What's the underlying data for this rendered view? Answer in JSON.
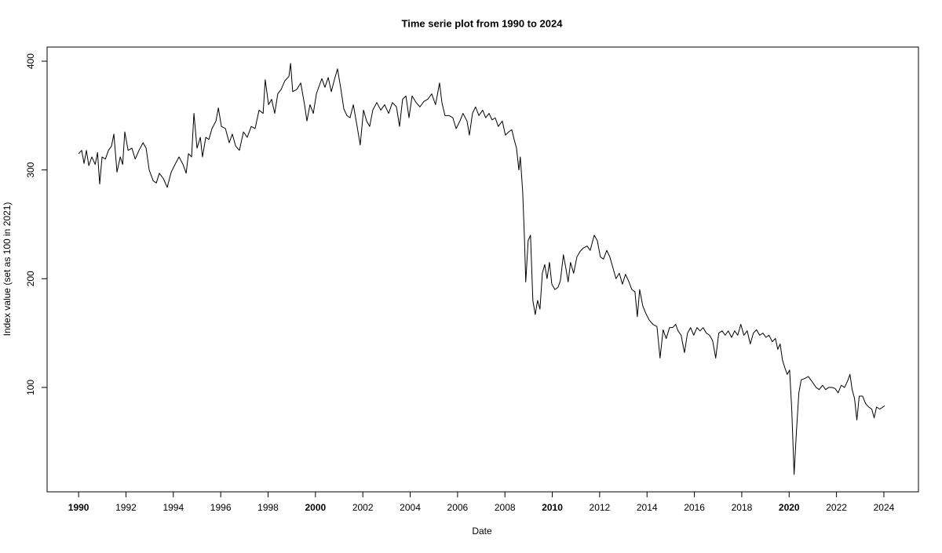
{
  "chart_data": {
    "type": "line",
    "title": "Time serie plot from 1990 to 2024",
    "x_label": "Date",
    "y_label": "Index value (set as 100 in 2021)",
    "color": "#000000",
    "xlim": [
      1988.67,
      2025.46
    ],
    "ylim": [
      4,
      413
    ],
    "xticks": [
      1990,
      1992,
      1994,
      1996,
      1998,
      2000,
      2002,
      2004,
      2006,
      2008,
      2010,
      2012,
      2014,
      2016,
      2018,
      2020,
      2022,
      2024
    ],
    "yticks": [
      100,
      200,
      300,
      400
    ],
    "x": [
      1990.0,
      1990.13,
      1990.23,
      1990.33,
      1990.43,
      1990.56,
      1990.7,
      1990.8,
      1990.89,
      1990.99,
      1991.13,
      1991.26,
      1991.39,
      1991.49,
      1991.62,
      1991.76,
      1991.86,
      1991.95,
      1992.09,
      1992.25,
      1992.39,
      1992.55,
      1992.72,
      1992.85,
      1992.98,
      1993.15,
      1993.28,
      1993.41,
      1993.58,
      1993.74,
      1993.91,
      1994.07,
      1994.24,
      1994.41,
      1994.54,
      1994.64,
      1994.77,
      1994.87,
      1995.0,
      1995.14,
      1995.23,
      1995.37,
      1995.5,
      1995.63,
      1995.8,
      1995.9,
      1996.03,
      1996.2,
      1996.36,
      1996.49,
      1996.63,
      1996.79,
      1996.96,
      1997.12,
      1997.29,
      1997.45,
      1997.62,
      1997.79,
      1997.88,
      1998.02,
      1998.15,
      1998.28,
      1998.41,
      1998.55,
      1998.71,
      1998.88,
      1998.95,
      1999.04,
      1999.21,
      1999.38,
      1999.54,
      1999.64,
      1999.77,
      1999.91,
      2000.04,
      2000.17,
      2000.27,
      2000.4,
      2000.54,
      2000.67,
      2000.8,
      2000.93,
      2001.07,
      2001.2,
      2001.33,
      2001.46,
      2001.6,
      2001.76,
      2001.89,
      2002.03,
      2002.16,
      2002.29,
      2002.42,
      2002.59,
      2002.76,
      2002.92,
      2003.09,
      2003.25,
      2003.42,
      2003.55,
      2003.68,
      2003.82,
      2003.95,
      2004.08,
      2004.25,
      2004.41,
      2004.58,
      2004.74,
      2004.91,
      2005.07,
      2005.24,
      2005.34,
      2005.47,
      2005.64,
      2005.8,
      2005.94,
      2006.1,
      2006.23,
      2006.4,
      2006.5,
      2006.63,
      2006.76,
      2006.9,
      2007.06,
      2007.19,
      2007.33,
      2007.46,
      2007.59,
      2007.72,
      2007.89,
      2008.02,
      2008.16,
      2008.29,
      2008.39,
      2008.49,
      2008.59,
      2008.65,
      2008.75,
      2008.82,
      2008.88,
      2008.98,
      2009.08,
      2009.18,
      2009.28,
      2009.38,
      2009.48,
      2009.58,
      2009.68,
      2009.78,
      2009.88,
      2009.98,
      2010.11,
      2010.24,
      2010.34,
      2010.47,
      2010.57,
      2010.67,
      2010.77,
      2010.9,
      2011.04,
      2011.17,
      2011.3,
      2011.47,
      2011.6,
      2011.77,
      2011.9,
      2012.03,
      2012.16,
      2012.3,
      2012.43,
      2012.56,
      2012.69,
      2012.83,
      2012.96,
      2013.09,
      2013.22,
      2013.36,
      2013.49,
      2013.59,
      2013.69,
      2013.82,
      2013.95,
      2014.09,
      2014.25,
      2014.42,
      2014.55,
      2014.68,
      2014.81,
      2014.95,
      2015.08,
      2015.21,
      2015.31,
      2015.44,
      2015.58,
      2015.71,
      2015.84,
      2015.97,
      2016.11,
      2016.24,
      2016.37,
      2016.5,
      2016.64,
      2016.77,
      2016.9,
      2017.03,
      2017.17,
      2017.3,
      2017.43,
      2017.57,
      2017.7,
      2017.83,
      2017.96,
      2018.09,
      2018.23,
      2018.36,
      2018.49,
      2018.62,
      2018.76,
      2018.89,
      2019.02,
      2019.15,
      2019.29,
      2019.42,
      2019.52,
      2019.62,
      2019.72,
      2019.82,
      2019.92,
      2020.02,
      2020.11,
      2020.21,
      2020.31,
      2020.41,
      2020.51,
      2020.64,
      2020.81,
      2020.98,
      2021.14,
      2021.27,
      2021.41,
      2021.54,
      2021.67,
      2021.8,
      2021.94,
      2022.07,
      2022.2,
      2022.34,
      2022.47,
      2022.57,
      2022.66,
      2022.76,
      2022.86,
      2022.96,
      2023.1,
      2023.23,
      2023.36,
      2023.49,
      2023.59,
      2023.69,
      2023.83,
      2023.96,
      2024.03
    ],
    "values": [
      315,
      318,
      306,
      318,
      304,
      312,
      305,
      316,
      287,
      312,
      310,
      318,
      322,
      333,
      298,
      312,
      305,
      335,
      318,
      320,
      310,
      318,
      325,
      320,
      300,
      290,
      288,
      297,
      292,
      284,
      298,
      305,
      312,
      305,
      297,
      315,
      312,
      352,
      320,
      330,
      312,
      330,
      328,
      338,
      345,
      357,
      340,
      338,
      325,
      333,
      322,
      318,
      335,
      330,
      340,
      338,
      355,
      352,
      383,
      360,
      365,
      352,
      370,
      374,
      382,
      386,
      398,
      372,
      374,
      380,
      360,
      345,
      360,
      352,
      370,
      378,
      384,
      376,
      385,
      372,
      383,
      393,
      375,
      356,
      350,
      348,
      360,
      340,
      323,
      355,
      345,
      340,
      355,
      362,
      355,
      360,
      352,
      362,
      358,
      340,
      365,
      368,
      348,
      368,
      362,
      358,
      363,
      365,
      370,
      360,
      380,
      362,
      350,
      350,
      348,
      338,
      345,
      352,
      345,
      332,
      352,
      358,
      350,
      355,
      348,
      352,
      346,
      348,
      340,
      345,
      332,
      335,
      337,
      328,
      320,
      300,
      312,
      280,
      240,
      197,
      235,
      240,
      180,
      167,
      180,
      172,
      205,
      213,
      200,
      215,
      195,
      190,
      192,
      198,
      222,
      210,
      197,
      215,
      205,
      220,
      225,
      228,
      230,
      226,
      240,
      235,
      220,
      218,
      226,
      220,
      210,
      200,
      205,
      195,
      204,
      198,
      190,
      188,
      165,
      190,
      175,
      168,
      162,
      158,
      156,
      127,
      153,
      145,
      155,
      155,
      158,
      152,
      148,
      132,
      150,
      155,
      148,
      155,
      152,
      155,
      150,
      148,
      143,
      127,
      150,
      152,
      148,
      152,
      146,
      152,
      148,
      158,
      148,
      152,
      140,
      150,
      153,
      148,
      150,
      146,
      148,
      142,
      145,
      135,
      140,
      125,
      118,
      112,
      116,
      80,
      20,
      60,
      95,
      107,
      108,
      110,
      105,
      100,
      98,
      102,
      98,
      100,
      100,
      99,
      95,
      102,
      100,
      106,
      112,
      98,
      90,
      70,
      92,
      92,
      85,
      82,
      80,
      72,
      82,
      80,
      82,
      83
    ]
  }
}
